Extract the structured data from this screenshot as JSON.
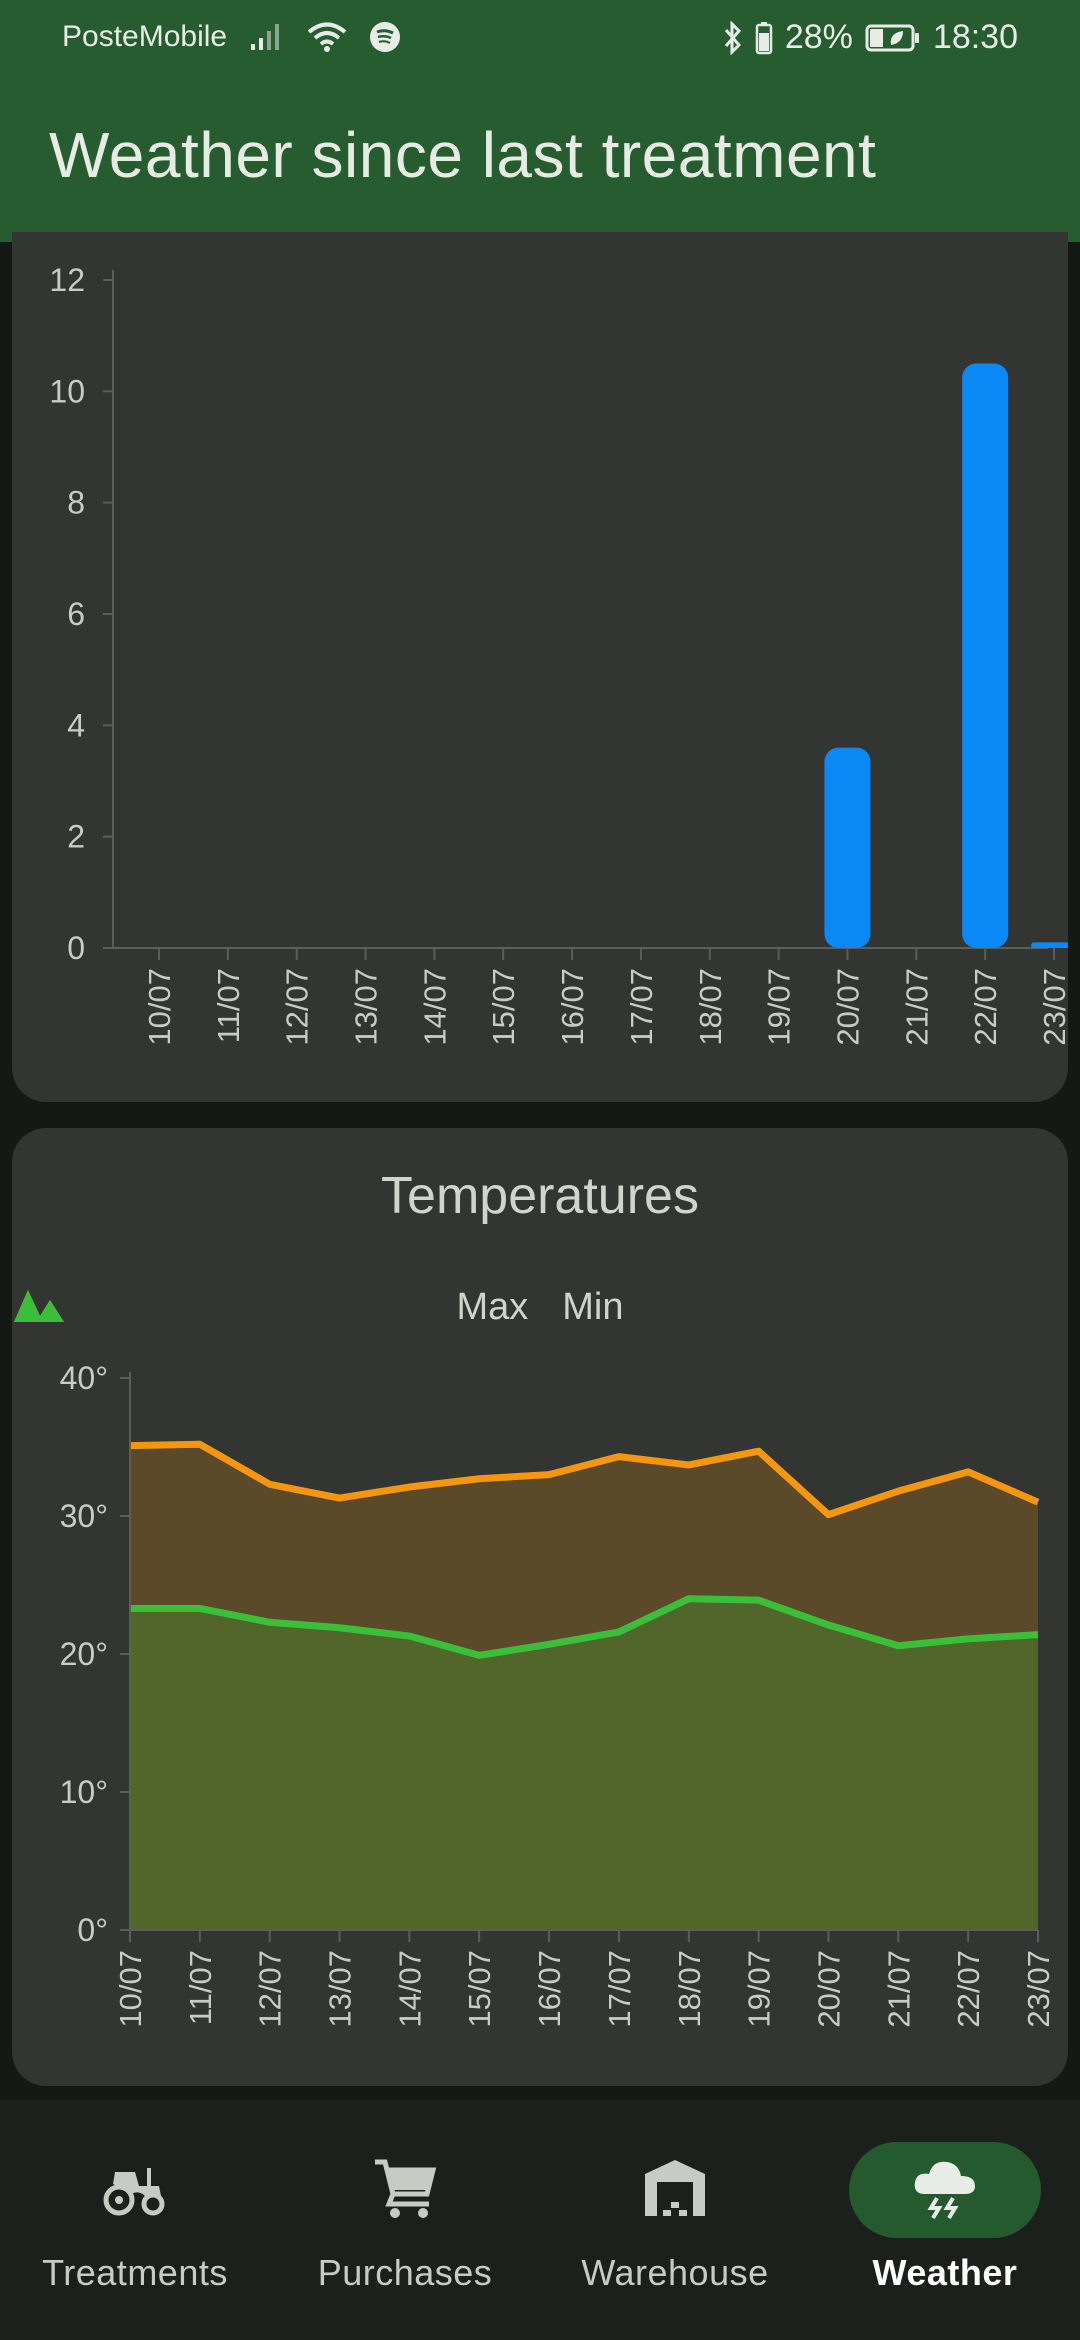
{
  "status": {
    "carrier": "PosteMobile",
    "battery": "28%",
    "time": "18:30"
  },
  "appbar": {
    "title": "Weather since last treatment"
  },
  "chart_data": [
    {
      "type": "bar",
      "title": "",
      "categories": [
        "10/07",
        "11/07",
        "12/07",
        "13/07",
        "14/07",
        "15/07",
        "16/07",
        "17/07",
        "18/07",
        "19/07",
        "20/07",
        "21/07",
        "22/07",
        "23/07"
      ],
      "values": [
        0,
        0,
        0,
        0,
        0,
        0,
        0,
        0,
        0,
        0,
        3.6,
        0,
        10.5,
        0.1
      ],
      "ylim": [
        0,
        12
      ],
      "yticks": [
        "0",
        "2",
        "4",
        "6",
        "8",
        "10",
        "12"
      ],
      "color": "#0a88f5",
      "grid": false
    },
    {
      "type": "area",
      "title": "Temperatures",
      "categories": [
        "10/07",
        "11/07",
        "12/07",
        "13/07",
        "14/07",
        "15/07",
        "16/07",
        "17/07",
        "18/07",
        "19/07",
        "20/07",
        "21/07",
        "22/07",
        "23/07"
      ],
      "series": [
        {
          "name": "Max",
          "color": "#f4970f",
          "fill": "#5a4a29",
          "values": [
            35.1,
            35.2,
            32.3,
            31.3,
            32.1,
            32.7,
            33.0,
            34.3,
            33.7,
            34.7,
            30.1,
            31.8,
            33.2,
            31.0
          ]
        },
        {
          "name": "Min",
          "color": "#3bbf3b",
          "fill": "#52652b",
          "values": [
            23.3,
            23.3,
            22.3,
            21.9,
            21.3,
            19.9,
            20.7,
            21.6,
            24.0,
            23.9,
            22.1,
            20.6,
            21.1,
            21.4
          ]
        }
      ],
      "ylim": [
        0,
        40
      ],
      "yticks": [
        "0°",
        "10°",
        "20°",
        "30°",
        "40°"
      ],
      "legend": "top-center",
      "grid": false
    }
  ],
  "nav": {
    "items": [
      {
        "label": "Treatments",
        "icon": "tractor-icon"
      },
      {
        "label": "Purchases",
        "icon": "cart-icon"
      },
      {
        "label": "Warehouse",
        "icon": "warehouse-icon"
      },
      {
        "label": "Weather",
        "icon": "storm-cloud-icon",
        "active": true
      }
    ]
  }
}
